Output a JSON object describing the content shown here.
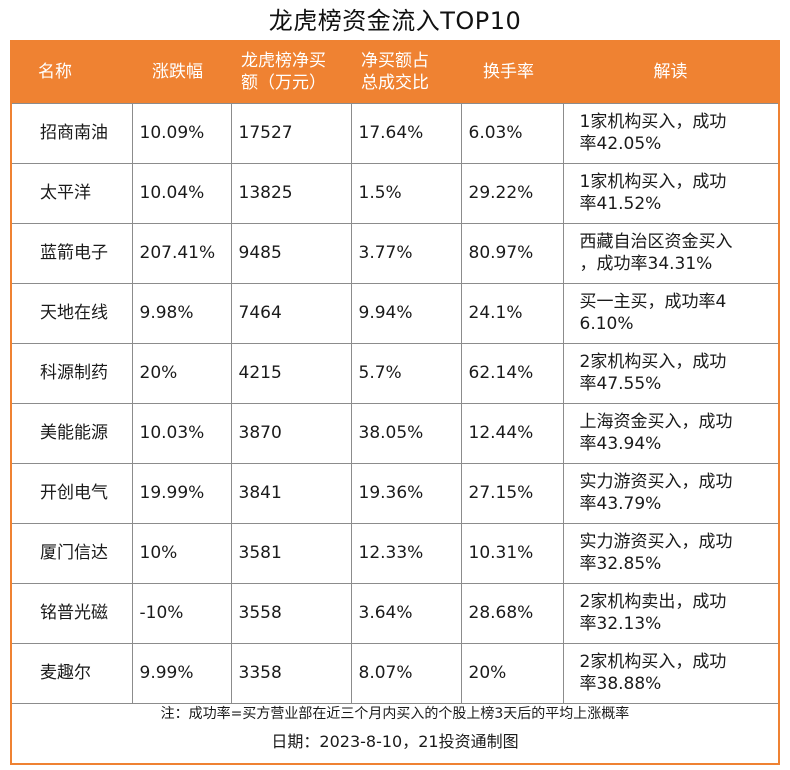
{
  "title": "龙虎榜资金流入TOP10",
  "headers": [
    "名称",
    "涨跌幅",
    "龙虎榜净买\n额（万元）",
    "净买额占\n总成交比",
    "换手率",
    "解读"
  ],
  "rows": [
    [
      "招商南油",
      "10.09%",
      "17527",
      "17.64%",
      "6.03%",
      "1家机构买入，成功\n率42.05%"
    ],
    [
      "太平洋",
      "10.04%",
      "13825",
      "1.5%",
      "29.22%",
      "1家机构买入，成功\n率41.52%"
    ],
    [
      "蓝箭电子",
      "207.41%",
      "9485",
      "3.77%",
      "80.97%",
      "西藏自治区资金买入\n，成功率34.31%"
    ],
    [
      "天地在线",
      "9.98%",
      "7464",
      "9.94%",
      "24.1%",
      "买一主买，成功率4\n6.10%"
    ],
    [
      "科源制药",
      "20%",
      "4215",
      "5.7%",
      "62.14%",
      "2家机构买入，成功\n率47.55%"
    ],
    [
      "美能能源",
      "10.03%",
      "3870",
      "38.05%",
      "12.44%",
      "上海资金买入，成功\n率43.94%"
    ],
    [
      "开创电气",
      "19.99%",
      "3841",
      "19.36%",
      "27.15%",
      "实力游资买入，成功\n率43.79%"
    ],
    [
      "厦门信达",
      "10%",
      "3581",
      "12.33%",
      "10.31%",
      "实力游资买入，成功\n率32.85%"
    ],
    [
      "铭普光磁",
      "-10%",
      "3558",
      "3.64%",
      "28.68%",
      "2家机构卖出，成功\n率32.13%"
    ],
    [
      "麦趣尔",
      "9.99%",
      "3358",
      "8.07%",
      "20%",
      "2家机构买入，成功\n率38.88%"
    ]
  ],
  "footnote": "注：成功率=买方营业部在近三个月内买入的个股上榜3天后的平均上涨概率",
  "date_line": "日期：2023-8-10，21投资通制图",
  "colors": {
    "header_bg": "#ef8232",
    "border": "#ef8232",
    "grid": "#8c8c8c",
    "header_text": "#ffffff"
  }
}
